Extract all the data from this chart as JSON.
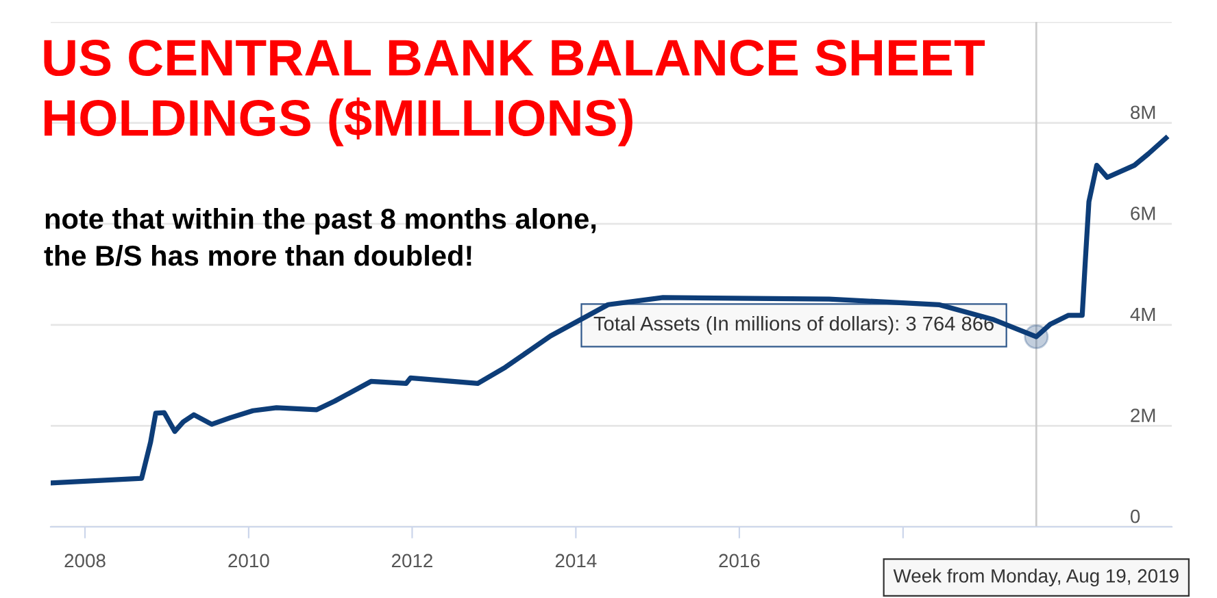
{
  "chart_data": {
    "type": "line",
    "title": "US CENTRAL BANK BALANCE SHEET\nHOLDINGS ($MILLIONS)",
    "subtitle": "note that within the past 8 months alone,\nthe B/S has more than doubled!",
    "x": [
      "2007-08-01",
      "2008-09-10",
      "2008-10-20",
      "2008-11-12",
      "2008-12-20",
      "2009-02-05",
      "2009-03-15",
      "2009-05-01",
      "2009-07-20",
      "2009-10-10",
      "2010-01-20",
      "2010-05-05",
      "2010-11-01",
      "2011-01-20",
      "2011-07-01",
      "2011-12-05",
      "2011-12-25",
      "2012-10-20",
      "2013-02-20",
      "2013-09-10",
      "2014-05-25",
      "2015-01-25",
      "2017-02-05",
      "2018-06-10",
      "2019-02-05",
      "2019-08-19",
      "2019-10-20",
      "2020-01-10",
      "2020-03-11",
      "2020-03-25",
      "2020-04-10",
      "2020-05-15",
      "2020-07-01",
      "2020-10-30",
      "2021-01-01",
      "2021-03-20"
    ],
    "series": [
      {
        "color": "#0d3d78",
        "values": [
          870000,
          960000,
          1680000,
          2250000,
          2260000,
          1890000,
          2080000,
          2220000,
          2030000,
          2160000,
          2300000,
          2360000,
          2320000,
          2490000,
          2880000,
          2840000,
          2950000,
          2840000,
          3160000,
          3780000,
          4400000,
          4540000,
          4510000,
          4400000,
          4110000,
          3764866,
          4010000,
          4190000,
          4190000,
          5270000,
          6440000,
          7160000,
          6920000,
          7160000,
          7390000,
          7700000
        ]
      }
    ],
    "annotations": [
      {
        "text": "Total Assets (In millions of dollars): 3 764 866",
        "x": "2019-08-19",
        "y": 3764866
      }
    ],
    "ref_lines": [
      {
        "axis": "x",
        "value": "2019-08-19",
        "label": "Week from Monday, Aug 19, 2019",
        "color": "#cccccc"
      }
    ],
    "xlim": [
      "2007-08-01",
      "2021-04-15"
    ],
    "xticks": [
      {
        "value": "2008",
        "label": "2008"
      },
      {
        "value": "2010",
        "label": "2010"
      },
      {
        "value": "2012",
        "label": "2012"
      },
      {
        "value": "2014",
        "label": "2014"
      },
      {
        "value": "2016",
        "label": "2016"
      },
      {
        "value": "2018",
        "label": null
      }
    ],
    "ylim": [
      0,
      10000000
    ],
    "yticks": [
      {
        "value": 0,
        "label": "0"
      },
      {
        "value": 2000000,
        "label": "2M"
      },
      {
        "value": 4000000,
        "label": "4M"
      },
      {
        "value": 6000000,
        "label": "6M"
      },
      {
        "value": 8000000,
        "label": "8M"
      },
      {
        "value": 10000000,
        "label": null
      }
    ],
    "grid": "y",
    "legend": false,
    "marker": "none",
    "line_style": "solid"
  }
}
